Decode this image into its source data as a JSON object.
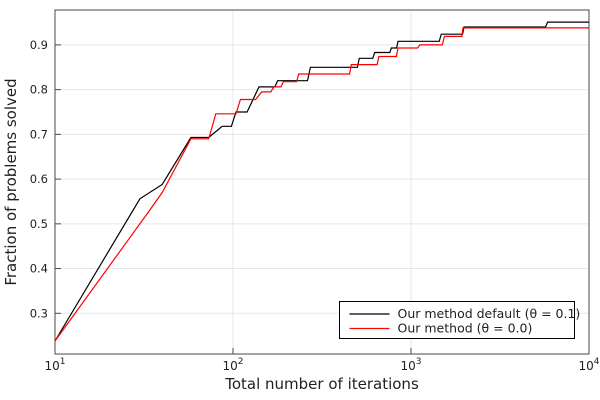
{
  "figure": {
    "background": "#ffffff",
    "frame_color": "#4a4a4a",
    "grid_color": "rgba(0,0,0,0.09)",
    "tick_text_color": "#1f1f1f",
    "label_text_color": "#000000"
  },
  "chart_data": {
    "type": "line",
    "title": "",
    "xlabel": "Total number of iterations",
    "ylabel": "Fraction of problems solved",
    "x_scale": "log10",
    "xlim": [
      10,
      10000
    ],
    "ylim": [
      0.209,
      0.978
    ],
    "grid": true,
    "legend_position": "bottom-right",
    "x_ticks": [
      {
        "v": 10,
        "base": "10",
        "exp": "1"
      },
      {
        "v": 100,
        "base": "10",
        "exp": "2"
      },
      {
        "v": 1000,
        "base": "10",
        "exp": "3"
      },
      {
        "v": 10000,
        "base": "10",
        "exp": "4"
      }
    ],
    "y_ticks": [
      {
        "v": 0.3,
        "label": "0.3"
      },
      {
        "v": 0.4,
        "label": "0.4"
      },
      {
        "v": 0.5,
        "label": "0.5"
      },
      {
        "v": 0.6,
        "label": "0.6"
      },
      {
        "v": 0.7,
        "label": "0.7"
      },
      {
        "v": 0.8,
        "label": "0.8"
      },
      {
        "v": 0.9,
        "label": "0.9"
      }
    ],
    "series": [
      {
        "name": "Our method default (θ = 0.1)",
        "color": "#000000",
        "points": [
          [
            10,
            0.238
          ],
          [
            30,
            0.556
          ],
          [
            40,
            0.588
          ],
          [
            58,
            0.693
          ],
          [
            73,
            0.693
          ],
          [
            87,
            0.718
          ],
          [
            98,
            0.718
          ],
          [
            104,
            0.75
          ],
          [
            120,
            0.75
          ],
          [
            140,
            0.806
          ],
          [
            172,
            0.806
          ],
          [
            178,
            0.82
          ],
          [
            262,
            0.82
          ],
          [
            272,
            0.85
          ],
          [
            500,
            0.85
          ],
          [
            512,
            0.87
          ],
          [
            610,
            0.87
          ],
          [
            625,
            0.883
          ],
          [
            760,
            0.883
          ],
          [
            775,
            0.893
          ],
          [
            830,
            0.893
          ],
          [
            845,
            0.908
          ],
          [
            1440,
            0.908
          ],
          [
            1480,
            0.924
          ],
          [
            1950,
            0.924
          ],
          [
            1985,
            0.94
          ],
          [
            5700,
            0.94
          ],
          [
            5850,
            0.951
          ],
          [
            10000,
            0.951
          ]
        ]
      },
      {
        "name": "Our method (θ = 0.0)",
        "color": "#ff0000",
        "points": [
          [
            10,
            0.238
          ],
          [
            34,
            0.53
          ],
          [
            40,
            0.57
          ],
          [
            58,
            0.69
          ],
          [
            73,
            0.69
          ],
          [
            80,
            0.746
          ],
          [
            104,
            0.746
          ],
          [
            110,
            0.778
          ],
          [
            134,
            0.778
          ],
          [
            145,
            0.795
          ],
          [
            163,
            0.795
          ],
          [
            170,
            0.806
          ],
          [
            186,
            0.806
          ],
          [
            192,
            0.818
          ],
          [
            228,
            0.818
          ],
          [
            234,
            0.835
          ],
          [
            452,
            0.835
          ],
          [
            462,
            0.856
          ],
          [
            645,
            0.856
          ],
          [
            660,
            0.874
          ],
          [
            828,
            0.874
          ],
          [
            845,
            0.893
          ],
          [
            1090,
            0.893
          ],
          [
            1120,
            0.9
          ],
          [
            1500,
            0.9
          ],
          [
            1540,
            0.919
          ],
          [
            1930,
            0.919
          ],
          [
            1960,
            0.938
          ],
          [
            10000,
            0.938
          ]
        ]
      }
    ],
    "legend": {
      "entries": [
        {
          "label": "Our method default (θ = 0.1)",
          "color": "#000000"
        },
        {
          "label": "Our method (θ = 0.0)",
          "color": "#ff0000"
        }
      ]
    }
  }
}
